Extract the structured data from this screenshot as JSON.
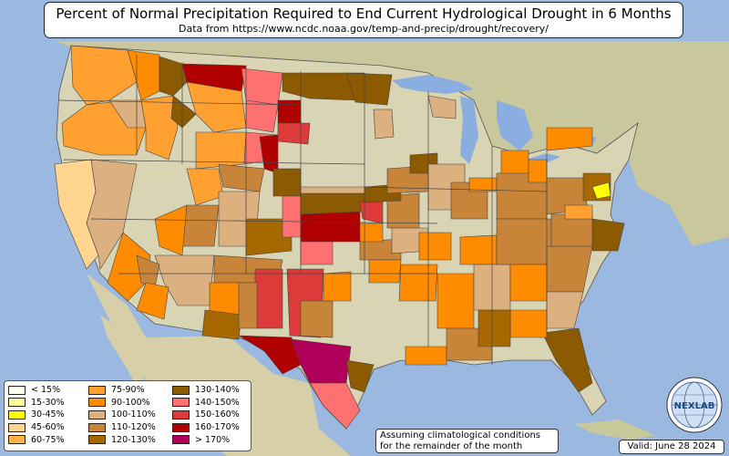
{
  "header": {
    "title": "Percent of Normal Precipitation Required to End Current Hydrological Drought in 6 Months",
    "subtitle": "Data from https://www.ncdc.noaa.gov/temp-and-precip/drought/recovery/"
  },
  "legend": {
    "items": [
      {
        "label": "< 15%",
        "color": "#fffff0"
      },
      {
        "label": "15-30%",
        "color": "#ffffa0"
      },
      {
        "label": "30-45%",
        "color": "#ffff00"
      },
      {
        "label": "45-60%",
        "color": "#ffd590"
      },
      {
        "label": "60-75%",
        "color": "#ffb347"
      },
      {
        "label": "75-90%",
        "color": "#ffa030"
      },
      {
        "label": "90-100%",
        "color": "#ff8c00"
      },
      {
        "label": "100-110%",
        "color": "#ddb080"
      },
      {
        "label": "110-120%",
        "color": "#c8853a"
      },
      {
        "label": "120-130%",
        "color": "#a86800"
      },
      {
        "label": "130-140%",
        "color": "#8c5a00"
      },
      {
        "label": "140-150%",
        "color": "#ff7070"
      },
      {
        "label": "150-160%",
        "color": "#dd3a3a"
      },
      {
        "label": "160-170%",
        "color": "#b00000"
      },
      {
        "label": "> 170%",
        "color": "#b0005a"
      }
    ]
  },
  "notes": {
    "line1": "Assuming climatological conditions",
    "line2": "for the remainder of the month"
  },
  "valid": "Valid: June 28 2024",
  "logo": {
    "text": "NEXLAB",
    "icon": "globe-logo-icon"
  },
  "colors": {
    "ocean": "#9ab8e0",
    "land": "#d8d3b0",
    "lakes": "#8aaee0"
  }
}
